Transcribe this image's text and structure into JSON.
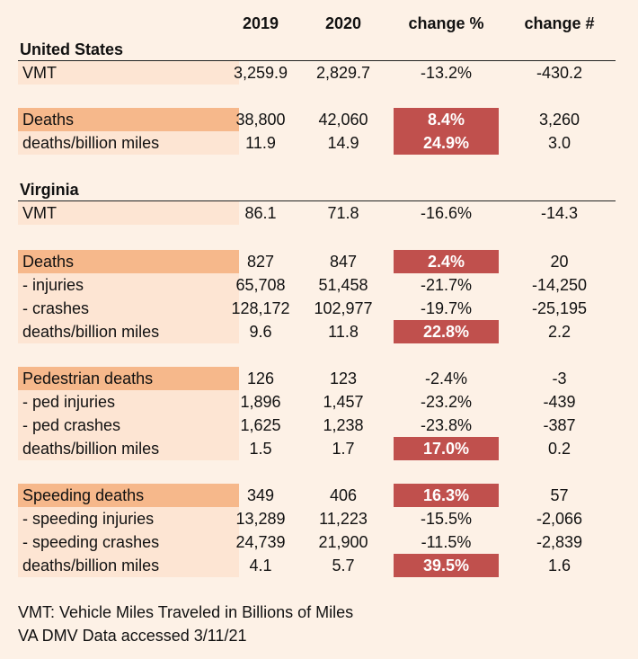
{
  "header": {
    "y2019": "2019",
    "y2020": "2020",
    "change_pct": "change %",
    "change_num": "change #"
  },
  "us": {
    "title": "United States",
    "rows": [
      {
        "label": "VMT",
        "y2019": "3,259.9",
        "y2020": "2,829.7",
        "change_pct": "-13.2%",
        "change_num": "-430.2"
      },
      {
        "label": "Deaths",
        "y2019": "38,800",
        "y2020": "42,060",
        "change_pct": "8.4%",
        "change_num": "3,260"
      },
      {
        "label": "deaths/billion miles",
        "y2019": "11.9",
        "y2020": "14.9",
        "change_pct": "24.9%",
        "change_num": "3.0"
      }
    ]
  },
  "va": {
    "title": "Virginia",
    "rows": [
      {
        "label": "VMT",
        "y2019": "86.1",
        "y2020": "71.8",
        "change_pct": "-16.6%",
        "change_num": "-14.3"
      },
      {
        "label": "Deaths",
        "y2019": "827",
        "y2020": "847",
        "change_pct": "2.4%",
        "change_num": "20"
      },
      {
        "label": "- injuries",
        "y2019": "65,708",
        "y2020": "51,458",
        "change_pct": "-21.7%",
        "change_num": "-14,250"
      },
      {
        "label": "- crashes",
        "y2019": "128,172",
        "y2020": "102,977",
        "change_pct": "-19.7%",
        "change_num": "-25,195"
      },
      {
        "label": "deaths/billion miles",
        "y2019": "9.6",
        "y2020": "11.8",
        "change_pct": "22.8%",
        "change_num": "2.2"
      },
      {
        "label": "Pedestrian deaths",
        "y2019": "126",
        "y2020": "123",
        "change_pct": "-2.4%",
        "change_num": "-3"
      },
      {
        "label": "- ped injuries",
        "y2019": "1,896",
        "y2020": "1,457",
        "change_pct": "-23.2%",
        "change_num": "-439"
      },
      {
        "label": "- ped crashes",
        "y2019": "1,625",
        "y2020": "1,238",
        "change_pct": "-23.8%",
        "change_num": "-387"
      },
      {
        "label": "deaths/billion miles",
        "y2019": "1.5",
        "y2020": "1.7",
        "change_pct": "17.0%",
        "change_num": "0.2"
      },
      {
        "label": "Speeding deaths",
        "y2019": "349",
        "y2020": "406",
        "change_pct": "16.3%",
        "change_num": "57"
      },
      {
        "label": "- speeding injuries",
        "y2019": "13,289",
        "y2020": "11,223",
        "change_pct": "-15.5%",
        "change_num": "-2,066"
      },
      {
        "label": "- speeding crashes",
        "y2019": "24,739",
        "y2020": "21,900",
        "change_pct": "-11.5%",
        "change_num": "-2,839"
      },
      {
        "label": "deaths/billion miles",
        "y2019": "4.1",
        "y2020": "5.7",
        "change_pct": "39.5%",
        "change_num": "1.6"
      }
    ]
  },
  "notes": {
    "vmt": "VMT: Vehicle Miles Traveled in Billions of Miles",
    "source": "VA DMV Data accessed 3/11/21"
  },
  "colors": {
    "background": "#fdf1e6",
    "label_light": "#fde5d3",
    "label_orange": "#f6b88b",
    "highlight_red": "#c0504d"
  }
}
